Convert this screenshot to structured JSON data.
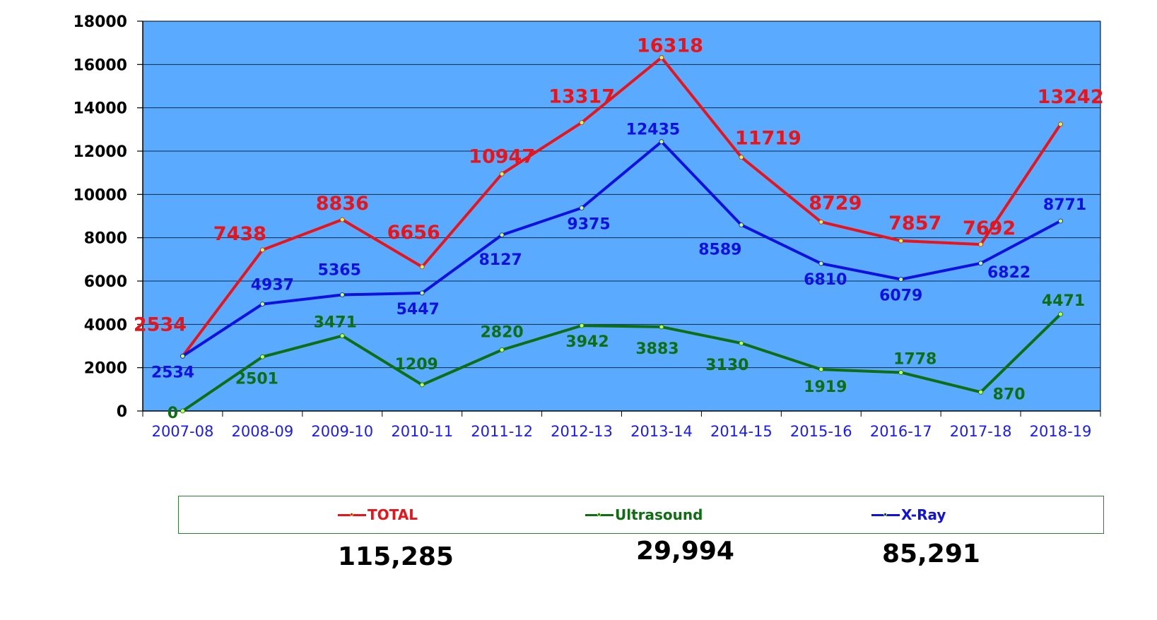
{
  "chart_data": {
    "type": "line",
    "categories": [
      "2007-08",
      "2008-09",
      "2009-10",
      "2010-11",
      "2011-12",
      "2012-13",
      "2013-14",
      "2014-15",
      "2015-16",
      "2016-17",
      "2017-18",
      "2018-19"
    ],
    "ylim": [
      0,
      18000
    ],
    "yticks": [
      0,
      2000,
      4000,
      6000,
      8000,
      10000,
      12000,
      14000,
      16000,
      18000
    ],
    "grid": true,
    "legend_placement": "bottom",
    "plot_background": "#5aabff",
    "series": [
      {
        "name": "TOTAL",
        "color": "#e8141a",
        "values": [
          2534,
          7438,
          8836,
          6656,
          10947,
          13317,
          16318,
          11719,
          8729,
          7857,
          7692,
          13242
        ]
      },
      {
        "name": "Ultrasound",
        "color": "#0e6e12",
        "values": [
          0,
          2501,
          3471,
          1209,
          2820,
          3942,
          3883,
          3130,
          1919,
          1778,
          870,
          4471
        ]
      },
      {
        "name": "X-Ray",
        "color": "#1010e0",
        "values": [
          2534,
          4937,
          5365,
          5447,
          8127,
          9375,
          12435,
          8589,
          6810,
          6079,
          6822,
          8771
        ]
      }
    ]
  },
  "totals": {
    "total": "115,285",
    "ultrasound": "29,994",
    "xray": "85,291"
  }
}
